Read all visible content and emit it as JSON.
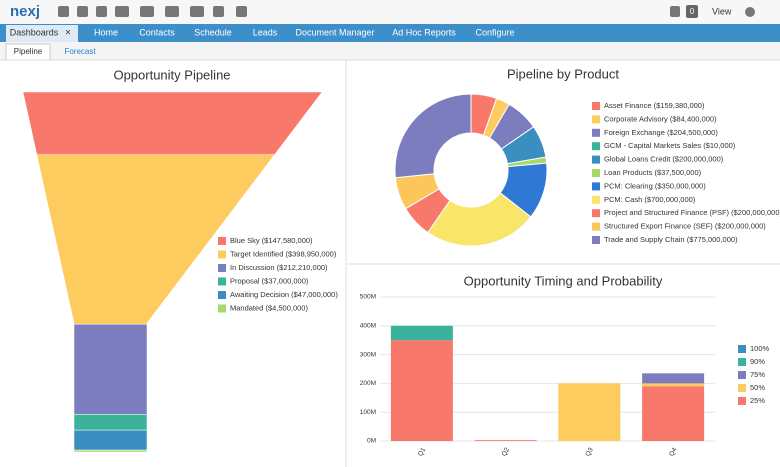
{
  "header": {
    "logo": "nexj",
    "notifications": "0",
    "view": "View"
  },
  "nav": {
    "items": [
      "Dashboards",
      "Home",
      "Contacts",
      "Schedule",
      "Leads",
      "Document Manager",
      "Ad Hoc Reports",
      "Configure"
    ],
    "close": "×"
  },
  "tabs": [
    "Pipeline",
    "Forecast"
  ],
  "chart_data": [
    {
      "type": "funnel",
      "title": "Opportunity Pipeline",
      "categories": [
        "Blue Sky ($147,580,000)",
        "Target Identified ($398,950,000)",
        "In Discussion ($212,210,000)",
        "Proposal ($37,000,000)",
        "Awaiting Decision ($47,000,000)",
        "Mandated ($4,500,000)"
      ],
      "values": [
        147580000,
        398950000,
        212210000,
        37000000,
        47000000,
        4500000
      ],
      "colors": [
        "#f8786b",
        "#fdcb5e",
        "#7b7dbf",
        "#3bb39a",
        "#3a8fc0",
        "#a6d96a"
      ]
    },
    {
      "type": "pie",
      "title": "Pipeline by Product",
      "donut": true,
      "categories": [
        "Asset Finance ($159,380,000)",
        "Corporate Advisory ($84,400,000)",
        "Foreign Exchange ($204,500,000)",
        "GCM - Capital Markets Sales ($10,000)",
        "Global Loans Credit ($200,000,000)",
        "Loan Products ($37,500,000)",
        "PCM: Clearing ($350,000,000)",
        "PCM: Cash ($700,000,000)",
        "Project and Structured Finance (PSF) ($200,000,000)",
        "Structured Export Finance (SEF) ($200,000,000)",
        "Trade and Supply Chain ($775,000,000)"
      ],
      "values": [
        159380000,
        84400000,
        204500000,
        10000,
        200000000,
        37500000,
        350000000,
        700000000,
        200000000,
        200000000,
        775000000
      ],
      "colors": [
        "#f8786b",
        "#fdcb5e",
        "#7b7dbf",
        "#3bb39a",
        "#3a8fc0",
        "#a6d96a",
        "#2f78d3",
        "#f9e56a",
        "#f8786b",
        "#fdc55a",
        "#7b7dbf"
      ]
    },
    {
      "type": "bar",
      "title": "Opportunity Timing and Probability",
      "stacked": true,
      "categories": [
        "Q1",
        "Q2",
        "Q3",
        "Q4"
      ],
      "series": [
        {
          "name": "100%",
          "color": "#3a8fc0",
          "values": [
            0,
            0,
            0,
            0
          ]
        },
        {
          "name": "90%",
          "color": "#3bb39a",
          "values": [
            50,
            0,
            0,
            0
          ]
        },
        {
          "name": "75%",
          "color": "#7b7dbf",
          "values": [
            0,
            0,
            0,
            35
          ]
        },
        {
          "name": "50%",
          "color": "#fdcb5e",
          "values": [
            0,
            0,
            200,
            10
          ]
        },
        {
          "name": "25%",
          "color": "#f8786b",
          "values": [
            350,
            3,
            0,
            190
          ]
        }
      ],
      "ylim": [
        0,
        500
      ],
      "yticks": [
        {
          "value": 0,
          "label": "0M"
        },
        {
          "value": 100,
          "label": "100M"
        },
        {
          "value": 200,
          "label": "200M"
        },
        {
          "value": 300,
          "label": "300M"
        },
        {
          "value": 400,
          "label": "400M"
        },
        {
          "value": 500,
          "label": "500M"
        }
      ],
      "grid": true
    }
  ]
}
